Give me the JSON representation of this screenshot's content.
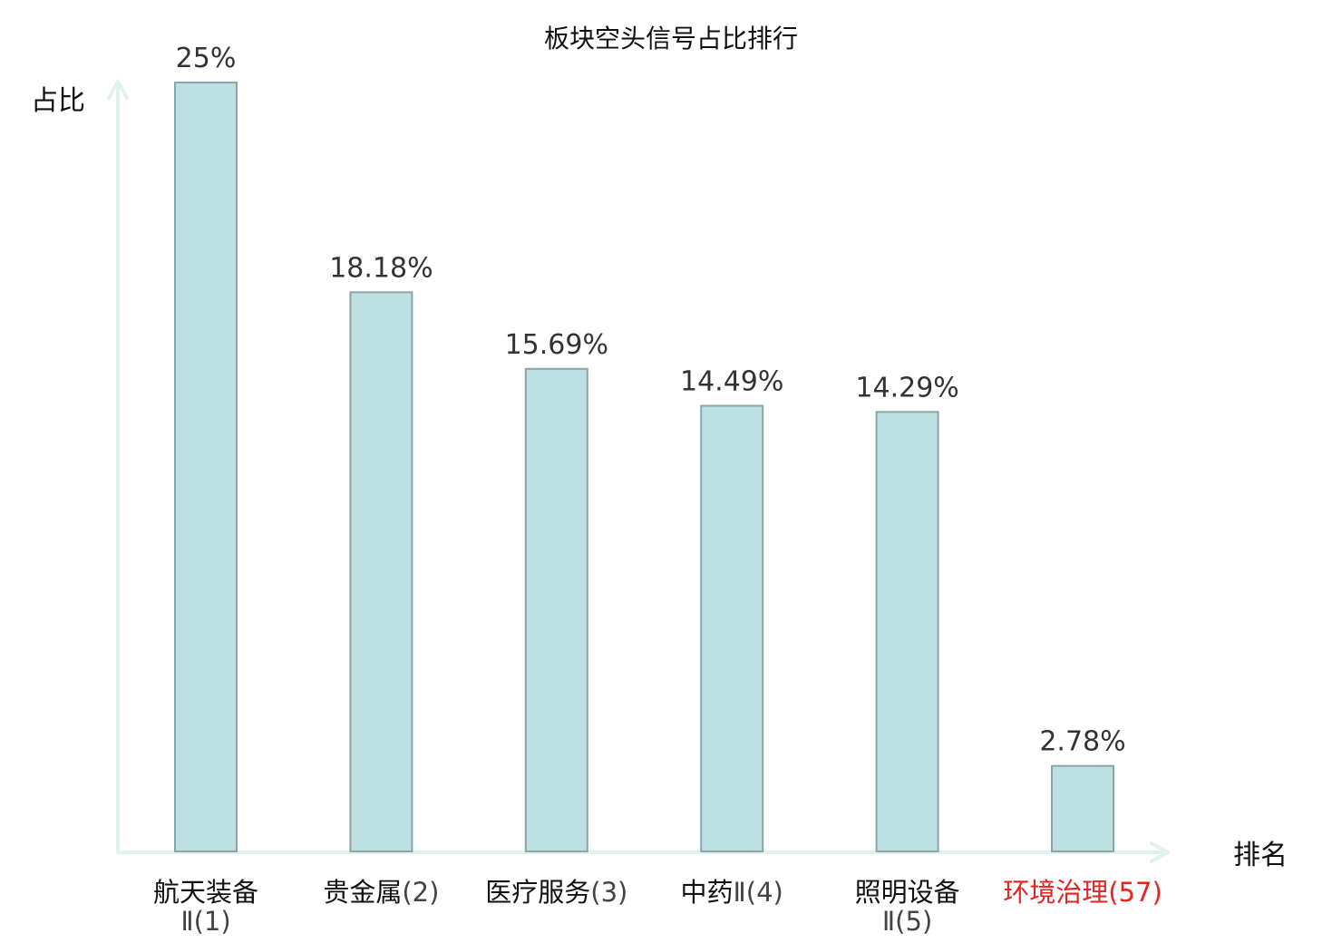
{
  "chart_data": {
    "type": "bar",
    "title": "板块空头信号占比排行",
    "xlabel": "排名",
    "ylabel": "占比",
    "categories": [
      {
        "name": "航天装备",
        "rank": "Ⅱ(1)",
        "wrap": true
      },
      {
        "name": "贵金属",
        "rank": "(2)",
        "wrap": false
      },
      {
        "name": "医疗服务",
        "rank": "(3)",
        "wrap": false
      },
      {
        "name": "中药",
        "rank": "Ⅱ(4)",
        "wrap": false
      },
      {
        "name": "照明设备",
        "rank": "Ⅱ(5)",
        "wrap": true
      },
      {
        "name": "环境治理",
        "rank": "(57)",
        "wrap": false,
        "highlight": true
      }
    ],
    "values": [
      25,
      18.18,
      15.69,
      14.49,
      14.29,
      2.78
    ],
    "value_labels": [
      "25%",
      "18.18%",
      "15.69%",
      "14.49%",
      "14.29%",
      "2.78%"
    ],
    "ylim": [
      0,
      25
    ],
    "grid": false,
    "legend": "none",
    "colors": {
      "bar_fill": "#bde0e2",
      "bar_stroke": "#8aa6a8",
      "axis": "#e0f2ef",
      "highlight": "#e8231f"
    }
  }
}
